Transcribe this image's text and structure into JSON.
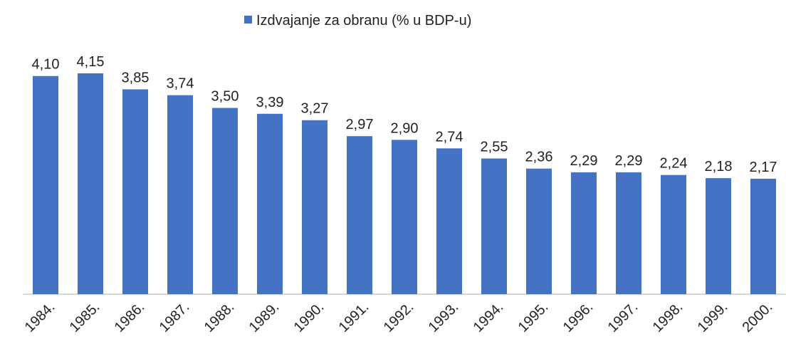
{
  "chart_data": {
    "type": "bar",
    "categories": [
      "1984.",
      "1985.",
      "1986.",
      "1987.",
      "1988.",
      "1989.",
      "1990.",
      "1991.",
      "1992.",
      "1993.",
      "1994.",
      "1995.",
      "1996.",
      "1997.",
      "1998.",
      "1999.",
      "2000."
    ],
    "series": [
      {
        "name": "Izdvajanje za obranu (% u BDP-u)",
        "color": "#4472c4",
        "values": [
          4.1,
          4.15,
          3.85,
          3.74,
          3.5,
          3.39,
          3.27,
          2.97,
          2.9,
          2.74,
          2.55,
          2.36,
          2.29,
          2.29,
          2.24,
          2.18,
          2.17
        ],
        "value_labels": [
          "4,10",
          "4,15",
          "3,85",
          "3,74",
          "3,50",
          "3,39",
          "3,27",
          "2,97",
          "2,90",
          "2,74",
          "2,55",
          "2,36",
          "2,29",
          "2,29",
          "2,24",
          "2,18",
          "2,17"
        ]
      }
    ],
    "legend": "top"
  }
}
